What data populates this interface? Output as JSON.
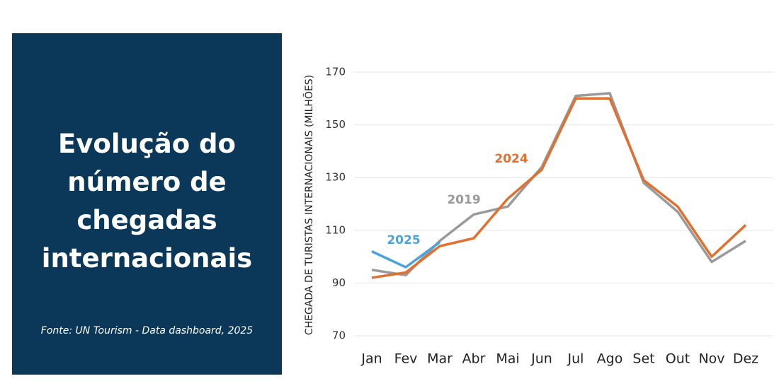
{
  "panel": {
    "title": "Evolução do número de chegadas internacionais",
    "source": "Fonte: UN Tourism - Data dashboard, 2025"
  },
  "chart_data": {
    "type": "line",
    "y_label": "CHEGADA DE TURISTAS INTERNACIONAIS (MILHÕES)",
    "categories": [
      "Jan",
      "Fev",
      "Mar",
      "Abr",
      "Mai",
      "Jun",
      "Jul",
      "Ago",
      "Set",
      "Out",
      "Nov",
      "Dez"
    ],
    "series": [
      {
        "name": "2019",
        "color": "#9a9a9a",
        "values": [
          95,
          93,
          106,
          116,
          119,
          134,
          161,
          162,
          128,
          117,
          98,
          106
        ]
      },
      {
        "name": "2024",
        "color": "#e0702f",
        "values": [
          92,
          94,
          104,
          107,
          122,
          133,
          160,
          160,
          129,
          119,
          100,
          112
        ]
      },
      {
        "name": "2025",
        "color": "#4aa3df",
        "values": [
          102,
          96,
          105.5,
          null,
          null,
          null,
          null,
          null,
          null,
          null,
          null,
          null
        ]
      }
    ],
    "ylim": [
      70,
      170
    ],
    "yticks": [
      70,
      90,
      110,
      130,
      150,
      170
    ],
    "grid": true
  }
}
